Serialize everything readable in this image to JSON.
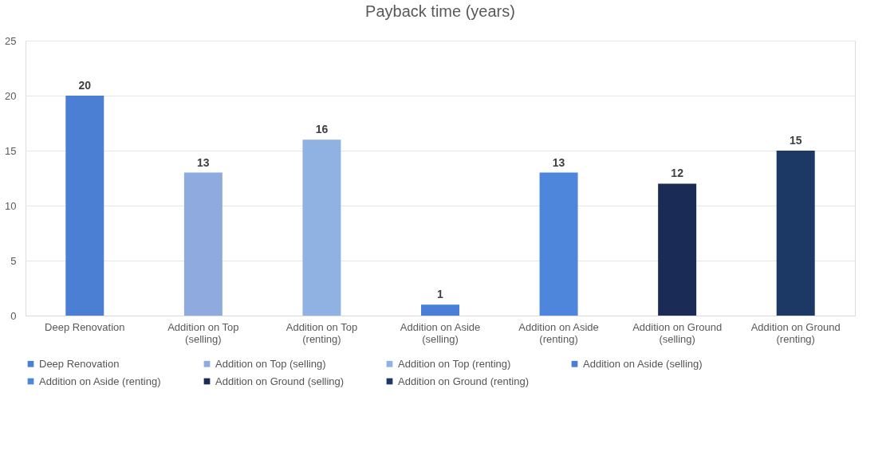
{
  "chart_data": {
    "type": "bar",
    "title": "Payback time (years)",
    "categories": [
      "Deep Renovation",
      "Addition on Top (selling)",
      "Addition on Top (renting)",
      "Addition on Aside (selling)",
      "Addition on Aside (renting)",
      "Addition on Ground (selling)",
      "Addition on Ground (renting)"
    ],
    "series": [
      {
        "name": "Deep Renovation",
        "color": "#4a7fd4",
        "values": [
          20,
          null,
          null,
          null,
          null,
          null,
          null
        ]
      },
      {
        "name": "Addition on Top (selling)",
        "color": "#8eaade",
        "values": [
          null,
          13,
          null,
          null,
          null,
          null,
          null
        ]
      },
      {
        "name": "Addition on Top (renting)",
        "color": "#8fb2e2",
        "values": [
          null,
          null,
          16,
          null,
          null,
          null,
          null
        ]
      },
      {
        "name": "Addition on Aside (selling)",
        "color": "#4a7fd6",
        "values": [
          null,
          null,
          null,
          1,
          null,
          null,
          null
        ]
      },
      {
        "name": "Addition on Aside (renting)",
        "color": "#4d86da",
        "values": [
          null,
          null,
          null,
          null,
          13,
          null,
          null
        ]
      },
      {
        "name": "Addition on Ground (selling)",
        "color": "#1a2c55",
        "values": [
          null,
          null,
          null,
          null,
          null,
          12,
          null
        ]
      },
      {
        "name": "Addition on Ground (renting)",
        "color": "#1c3966",
        "values": [
          null,
          null,
          null,
          null,
          null,
          null,
          15
        ]
      }
    ],
    "ylim": [
      0,
      25
    ],
    "yticks": [
      0,
      5,
      10,
      15,
      20,
      25
    ],
    "grid": "y",
    "legend": "bottom",
    "data_labels": true
  }
}
